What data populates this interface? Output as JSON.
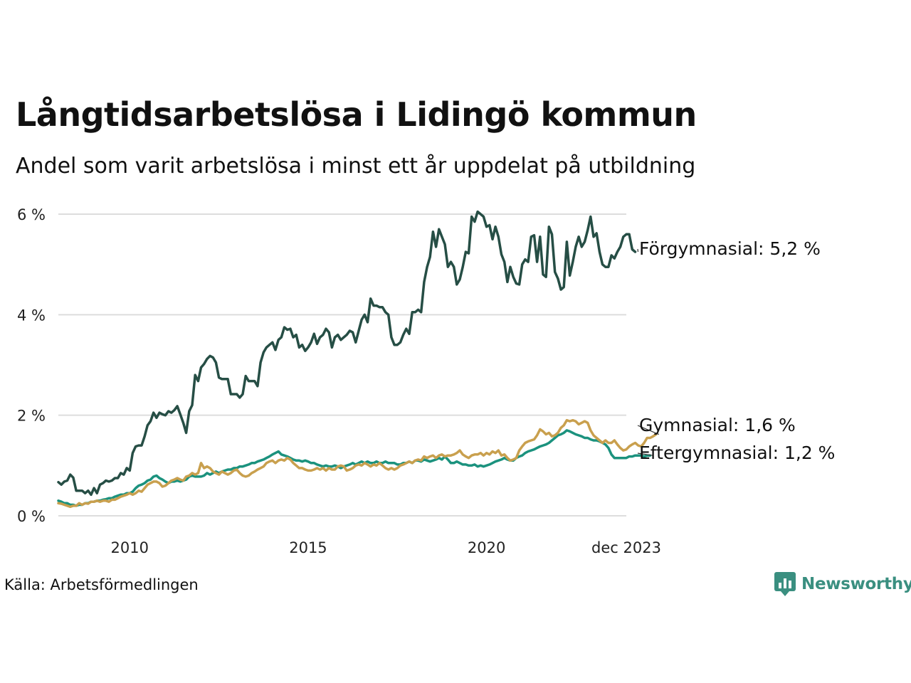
{
  "title": "Långtidsarbetslösa i Lidingö kommun",
  "subtitle": "Andel som varit arbetslösa i minst ett år uppdelat på utbildning",
  "source": "Källa: Arbetsförmedlingen",
  "brand": "Newsworthy",
  "colors": {
    "forgymnasial": "#264e45",
    "gymnasial": "#c9a04e",
    "eftergymnasial": "#1b927e",
    "grid": "#dddddd",
    "brand": "#3a8f80"
  },
  "chart_data": {
    "type": "line",
    "title": "Långtidsarbetslösa i Lidingö kommun",
    "subtitle": "Andel som varit arbetslösa i minst ett år uppdelat på utbildning",
    "x_start": 2008.0,
    "x_step": 0.08333,
    "x_range": [
      2008.0,
      2023.9167
    ],
    "x_ticks": [
      {
        "value": 2010,
        "label": "2010"
      },
      {
        "value": 2015,
        "label": "2015"
      },
      {
        "value": 2020,
        "label": "2020"
      },
      {
        "value": 2023.9167,
        "label": "dec 2023"
      }
    ],
    "ylim": [
      0,
      6
    ],
    "y_ticks": [
      {
        "value": 0,
        "label": "0 %"
      },
      {
        "value": 2,
        "label": "2 %"
      },
      {
        "value": 4,
        "label": "4 %"
      },
      {
        "value": 6,
        "label": "6 %"
      }
    ],
    "grid": true,
    "series": [
      {
        "key": "forgymnasial",
        "name": "Förgymnasial",
        "end_label": "Förgymnasial: 5,2 %",
        "values": [
          0.67,
          0.62,
          0.68,
          0.7,
          0.82,
          0.76,
          0.5,
          0.5,
          0.5,
          0.45,
          0.5,
          0.42,
          0.55,
          0.45,
          0.62,
          0.65,
          0.7,
          0.68,
          0.7,
          0.75,
          0.75,
          0.85,
          0.82,
          0.95,
          0.9,
          1.25,
          1.38,
          1.4,
          1.4,
          1.58,
          1.8,
          1.88,
          2.05,
          1.95,
          2.05,
          2.02,
          2.0,
          2.08,
          2.05,
          2.1,
          2.18,
          2.02,
          1.85,
          1.65,
          2.08,
          2.2,
          2.8,
          2.68,
          2.95,
          3.02,
          3.12,
          3.18,
          3.15,
          3.05,
          2.75,
          2.72,
          2.72,
          2.72,
          2.42,
          2.42,
          2.42,
          2.35,
          2.42,
          2.78,
          2.68,
          2.68,
          2.68,
          2.58,
          3.05,
          3.25,
          3.35,
          3.4,
          3.45,
          3.3,
          3.5,
          3.55,
          3.75,
          3.7,
          3.72,
          3.55,
          3.6,
          3.35,
          3.4,
          3.28,
          3.35,
          3.45,
          3.62,
          3.42,
          3.55,
          3.6,
          3.72,
          3.65,
          3.35,
          3.55,
          3.6,
          3.5,
          3.55,
          3.6,
          3.68,
          3.65,
          3.45,
          3.68,
          3.9,
          4.0,
          3.85,
          4.32,
          4.18,
          4.18,
          4.15,
          4.15,
          4.05,
          4.0,
          3.55,
          3.4,
          3.4,
          3.45,
          3.6,
          3.72,
          3.62,
          4.05,
          4.05,
          4.1,
          4.05,
          4.65,
          4.95,
          5.15,
          5.65,
          5.35,
          5.7,
          5.55,
          5.4,
          4.95,
          5.05,
          4.95,
          4.6,
          4.7,
          4.95,
          5.25,
          5.22,
          5.95,
          5.85,
          6.05,
          6.0,
          5.95,
          5.75,
          5.78,
          5.5,
          5.75,
          5.55,
          5.2,
          5.05,
          4.65,
          4.95,
          4.75,
          4.62,
          4.6,
          5.0,
          5.1,
          5.05,
          5.55,
          5.58,
          5.05,
          5.55,
          4.8,
          4.75,
          5.75,
          5.6,
          4.85,
          4.72,
          4.5,
          4.55,
          5.45,
          4.78,
          5.05,
          5.35,
          5.55,
          5.35,
          5.45,
          5.68,
          5.95,
          5.55,
          5.62,
          5.25,
          5.0,
          4.95,
          4.95,
          5.18,
          5.12,
          5.25,
          5.35,
          5.55,
          5.6,
          5.6,
          5.3,
          5.25
        ]
      },
      {
        "key": "gymnasial",
        "name": "Gymnasial",
        "end_label": "Gymnasial: 1,6 %",
        "values": [
          0.25,
          0.24,
          0.22,
          0.2,
          0.18,
          0.2,
          0.2,
          0.25,
          0.22,
          0.25,
          0.24,
          0.28,
          0.28,
          0.3,
          0.28,
          0.3,
          0.3,
          0.28,
          0.32,
          0.32,
          0.35,
          0.38,
          0.4,
          0.42,
          0.45,
          0.42,
          0.45,
          0.5,
          0.48,
          0.55,
          0.62,
          0.65,
          0.68,
          0.68,
          0.65,
          0.58,
          0.6,
          0.65,
          0.7,
          0.72,
          0.75,
          0.72,
          0.7,
          0.78,
          0.8,
          0.85,
          0.82,
          0.85,
          1.05,
          0.95,
          0.98,
          0.95,
          0.88,
          0.85,
          0.82,
          0.88,
          0.85,
          0.82,
          0.85,
          0.9,
          0.92,
          0.85,
          0.8,
          0.78,
          0.8,
          0.85,
          0.88,
          0.92,
          0.95,
          0.98,
          1.05,
          1.08,
          1.1,
          1.05,
          1.1,
          1.12,
          1.1,
          1.15,
          1.12,
          1.05,
          1.0,
          0.95,
          0.95,
          0.92,
          0.9,
          0.9,
          0.92,
          0.95,
          0.92,
          0.95,
          0.9,
          0.95,
          0.92,
          0.92,
          0.98,
          1.0,
          0.98,
          0.9,
          0.92,
          0.95,
          1.0,
          1.02,
          1.0,
          1.05,
          1.02,
          0.98,
          1.02,
          1.0,
          1.05,
          1.0,
          0.95,
          0.92,
          0.95,
          0.92,
          0.95,
          1.0,
          1.02,
          1.05,
          1.08,
          1.05,
          1.1,
          1.12,
          1.1,
          1.18,
          1.15,
          1.18,
          1.2,
          1.15,
          1.2,
          1.22,
          1.18,
          1.2,
          1.2,
          1.22,
          1.25,
          1.3,
          1.22,
          1.18,
          1.15,
          1.2,
          1.22,
          1.22,
          1.25,
          1.2,
          1.25,
          1.22,
          1.28,
          1.25,
          1.3,
          1.2,
          1.22,
          1.15,
          1.1,
          1.12,
          1.15,
          1.3,
          1.38,
          1.45,
          1.48,
          1.5,
          1.52,
          1.6,
          1.72,
          1.68,
          1.62,
          1.65,
          1.58,
          1.6,
          1.65,
          1.75,
          1.8,
          1.9,
          1.88,
          1.9,
          1.88,
          1.82,
          1.85,
          1.88,
          1.85,
          1.7,
          1.6,
          1.55,
          1.5,
          1.45,
          1.5,
          1.45,
          1.45,
          1.5,
          1.42,
          1.35,
          1.3,
          1.32,
          1.38,
          1.42,
          1.45,
          1.4,
          1.38,
          1.45,
          1.55,
          1.55,
          1.58,
          1.62
        ]
      },
      {
        "key": "eftergymnasial",
        "name": "Eftergymnasial",
        "end_label": "Eftergymnasial: 1,2 %",
        "values": [
          0.3,
          0.28,
          0.25,
          0.25,
          0.22,
          0.22,
          0.2,
          0.22,
          0.22,
          0.25,
          0.25,
          0.28,
          0.28,
          0.3,
          0.3,
          0.32,
          0.33,
          0.35,
          0.35,
          0.38,
          0.4,
          0.42,
          0.42,
          0.45,
          0.45,
          0.48,
          0.55,
          0.6,
          0.62,
          0.65,
          0.7,
          0.72,
          0.78,
          0.8,
          0.75,
          0.72,
          0.68,
          0.65,
          0.68,
          0.68,
          0.7,
          0.68,
          0.7,
          0.72,
          0.78,
          0.8,
          0.78,
          0.78,
          0.78,
          0.8,
          0.85,
          0.82,
          0.85,
          0.88,
          0.85,
          0.88,
          0.9,
          0.92,
          0.92,
          0.95,
          0.95,
          0.98,
          0.98,
          1.0,
          1.02,
          1.05,
          1.05,
          1.08,
          1.1,
          1.12,
          1.15,
          1.18,
          1.22,
          1.25,
          1.28,
          1.22,
          1.2,
          1.18,
          1.15,
          1.12,
          1.1,
          1.1,
          1.08,
          1.1,
          1.08,
          1.05,
          1.05,
          1.02,
          1.0,
          0.98,
          1.0,
          0.98,
          0.98,
          1.0,
          0.98,
          0.95,
          0.98,
          1.0,
          1.02,
          1.05,
          1.02,
          1.05,
          1.08,
          1.05,
          1.08,
          1.05,
          1.05,
          1.08,
          1.05,
          1.05,
          1.08,
          1.05,
          1.05,
          1.05,
          1.02,
          1.02,
          1.05,
          1.05,
          1.08,
          1.05,
          1.1,
          1.1,
          1.08,
          1.12,
          1.1,
          1.08,
          1.1,
          1.12,
          1.15,
          1.12,
          1.18,
          1.12,
          1.05,
          1.05,
          1.08,
          1.05,
          1.02,
          1.02,
          1.0,
          1.0,
          1.02,
          0.98,
          1.0,
          0.98,
          1.0,
          1.02,
          1.05,
          1.08,
          1.1,
          1.12,
          1.15,
          1.12,
          1.1,
          1.1,
          1.15,
          1.18,
          1.2,
          1.25,
          1.28,
          1.3,
          1.32,
          1.35,
          1.38,
          1.4,
          1.42,
          1.45,
          1.5,
          1.55,
          1.6,
          1.62,
          1.65,
          1.7,
          1.68,
          1.65,
          1.62,
          1.6,
          1.58,
          1.55,
          1.55,
          1.52,
          1.5,
          1.5,
          1.48,
          1.45,
          1.42,
          1.35,
          1.22,
          1.15,
          1.15,
          1.15,
          1.15,
          1.15,
          1.18,
          1.18,
          1.2,
          1.2,
          1.2,
          1.18,
          1.2,
          1.2
        ]
      }
    ]
  }
}
